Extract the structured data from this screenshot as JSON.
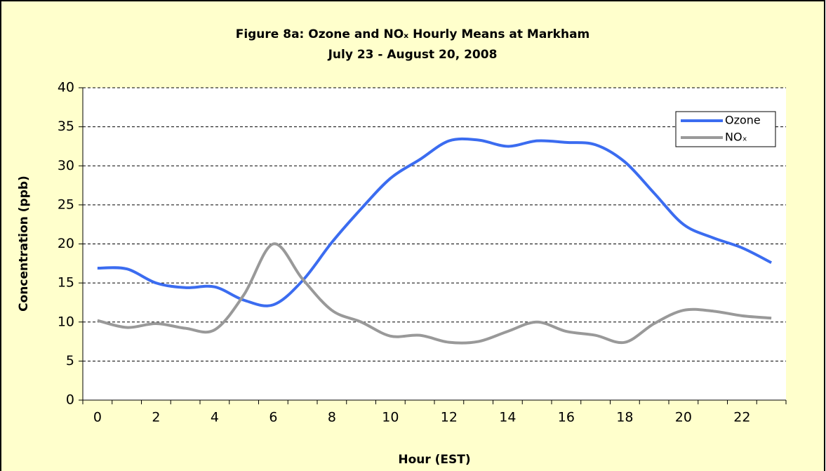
{
  "chart_data": {
    "type": "line",
    "title": "Figure 8a: Ozone and NOₓ Hourly Means at Markham",
    "subtitle": "July 23 - August 20, 2008",
    "x_label": "Hour (EST)",
    "y_label": "Concentration (ppb)",
    "x": [
      0,
      1,
      2,
      3,
      4,
      5,
      6,
      7,
      8,
      9,
      10,
      11,
      12,
      13,
      14,
      15,
      16,
      17,
      18,
      19,
      20,
      21,
      22,
      23
    ],
    "series": [
      {
        "name": "Ozone",
        "color": "#3b6cf0",
        "values": [
          16.9,
          16.8,
          15.0,
          14.4,
          14.5,
          12.8,
          12.2,
          15.3,
          20.2,
          24.5,
          28.4,
          30.8,
          33.2,
          33.3,
          32.5,
          33.2,
          33.0,
          32.7,
          30.5,
          26.5,
          22.5,
          20.8,
          19.5,
          17.6
        ]
      },
      {
        "name": "NOₓ",
        "color": "#999999",
        "values": [
          10.2,
          9.3,
          9.8,
          9.2,
          9.0,
          13.5,
          20.0,
          15.5,
          11.5,
          10.0,
          8.2,
          8.3,
          7.4,
          7.5,
          8.8,
          10.0,
          8.8,
          8.3,
          7.4,
          9.8,
          11.5,
          11.4,
          10.8,
          10.5
        ]
      }
    ],
    "xlim": [
      -0.5,
      23.5
    ],
    "xticks": [
      0,
      2,
      4,
      6,
      8,
      10,
      12,
      14,
      16,
      18,
      20,
      22
    ],
    "ylim": [
      0,
      40
    ],
    "yticks": [
      0,
      5,
      10,
      15,
      20,
      25,
      30,
      35,
      40
    ],
    "grid": true,
    "legend": "top-right",
    "smooth": true
  }
}
